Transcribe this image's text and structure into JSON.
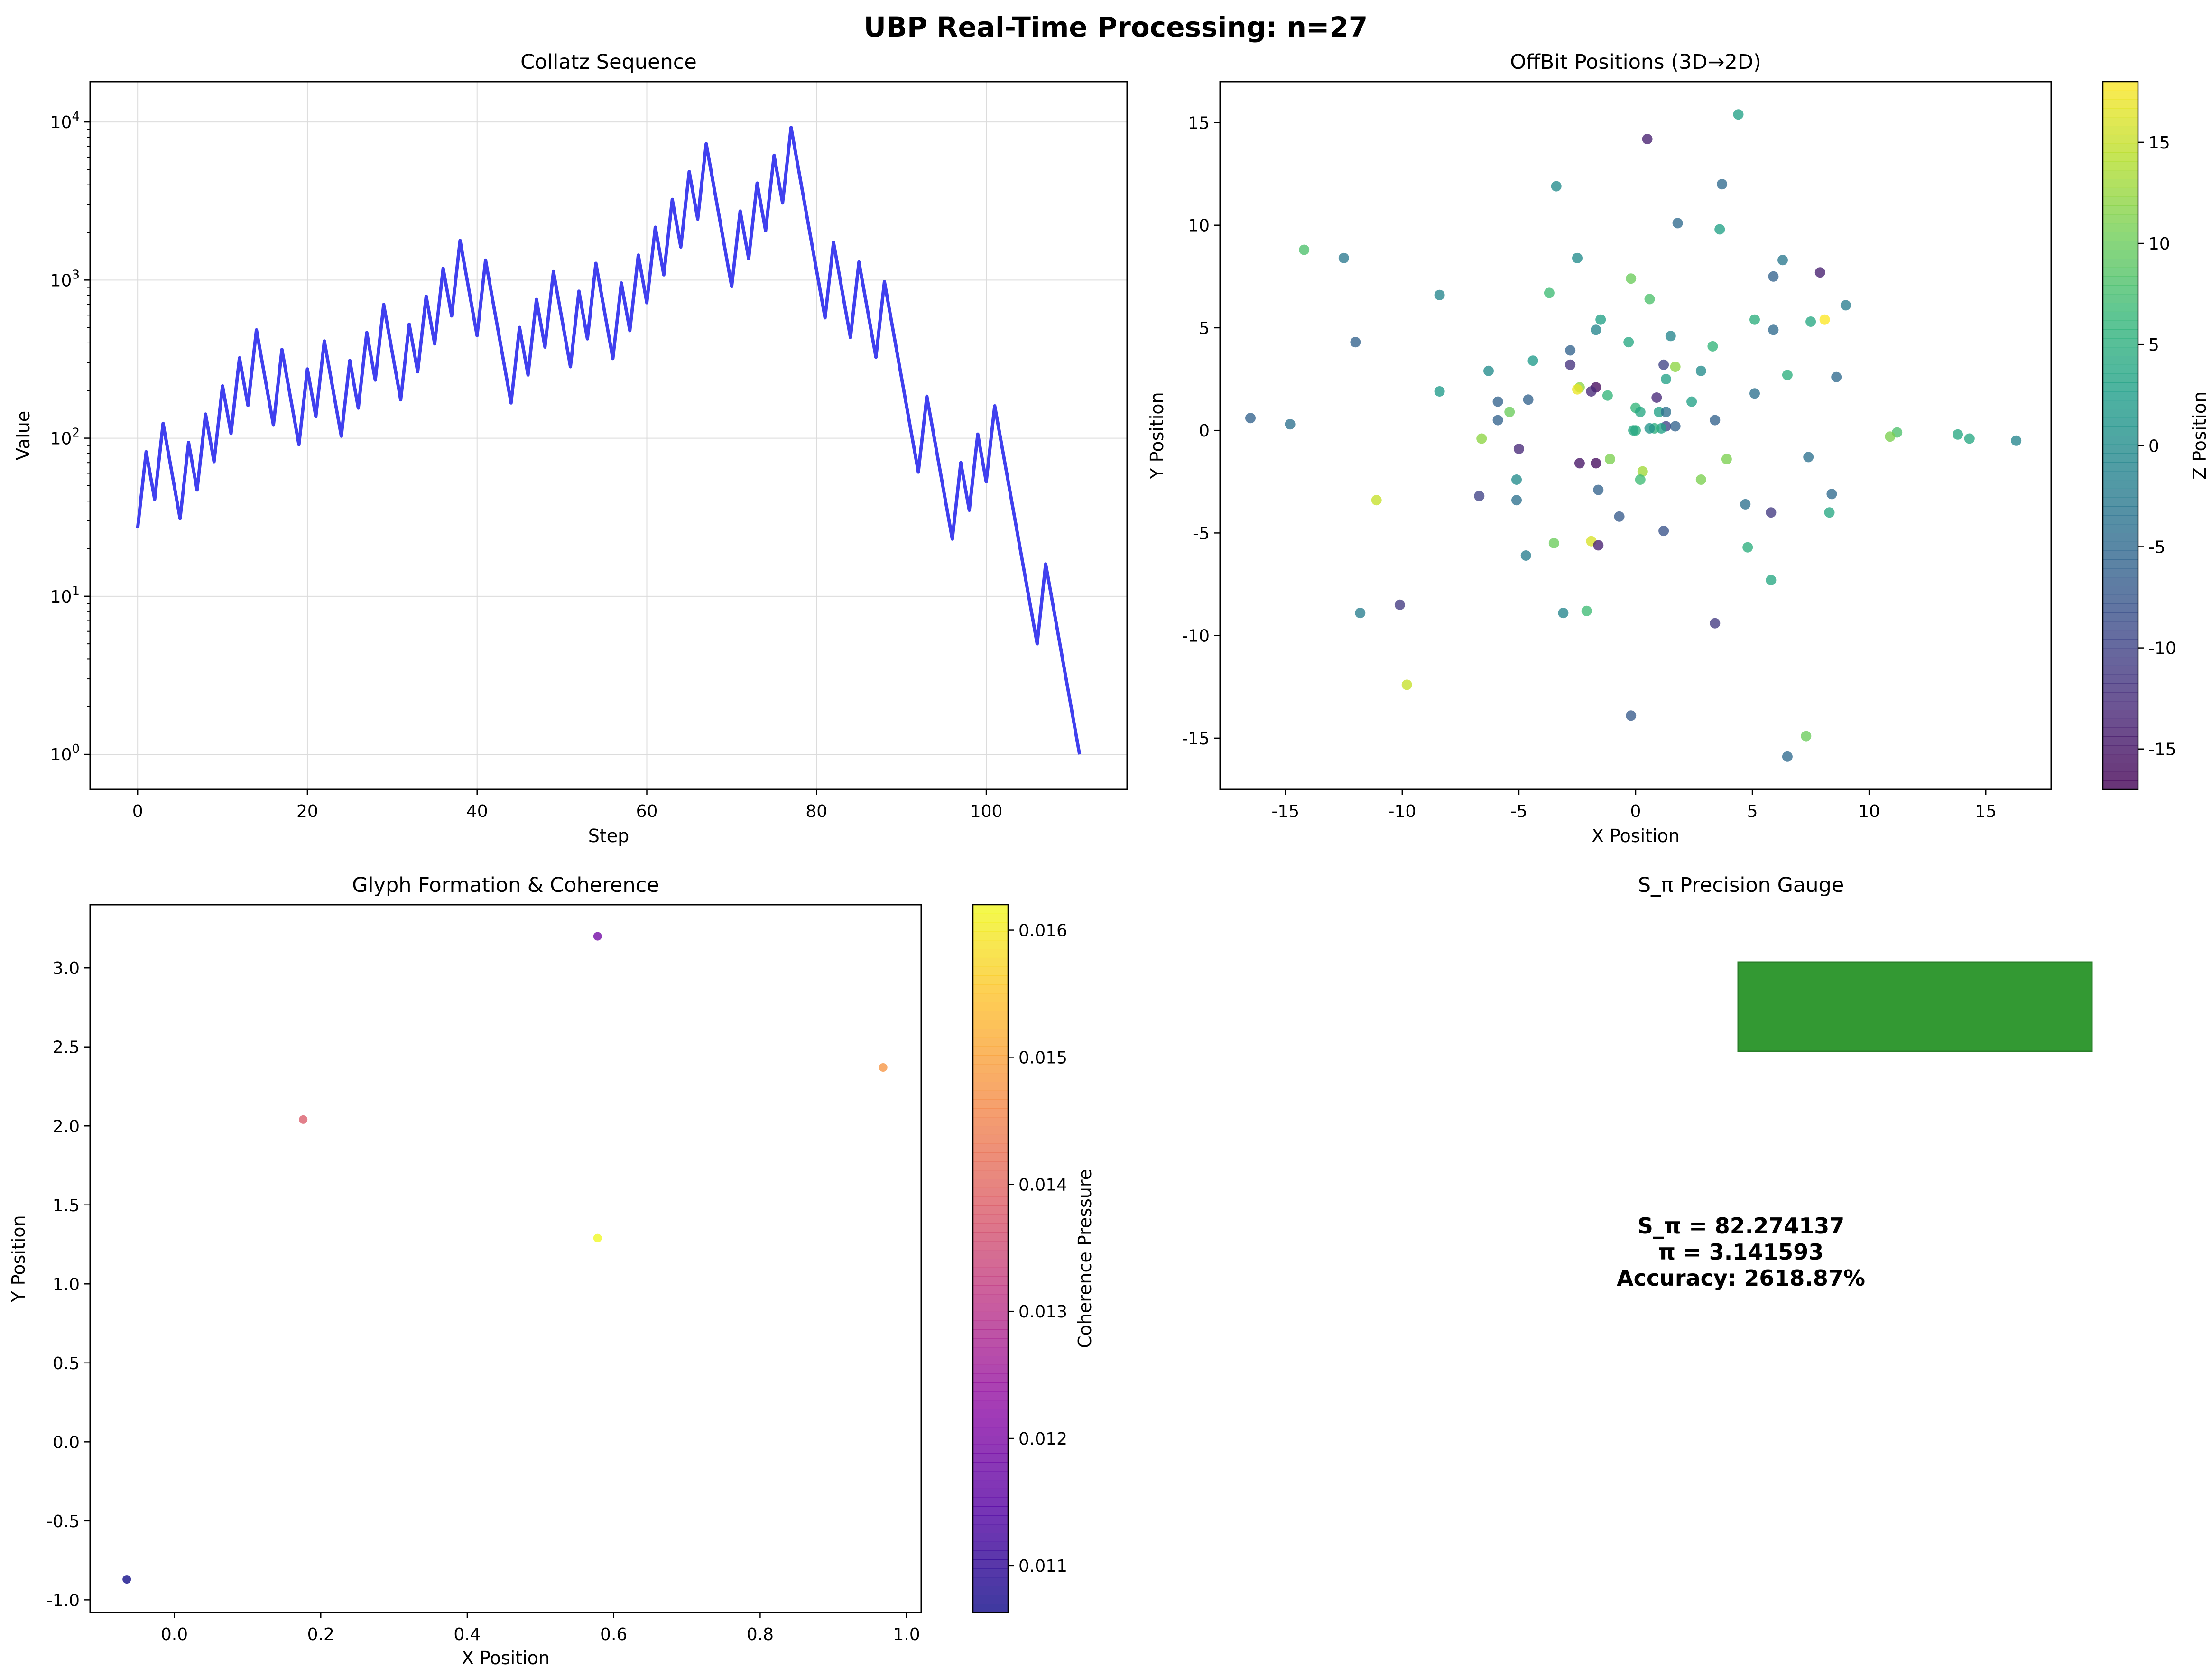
{
  "figure": {
    "title": "UBP Real-Time Processing: n=27"
  },
  "colors": {
    "line": "#4040ee",
    "grid": "#dcdcdc",
    "gauge_bar": "#339933"
  },
  "chart_data": [
    {
      "type": "line",
      "title": "Collatz Sequence",
      "xlabel": "Step",
      "ylabel": "Value",
      "yscale": "log",
      "ylim": [
        0.6,
        18000
      ],
      "xlim": [
        -5.6,
        116.6
      ],
      "xticks": [
        "0",
        "20",
        "40",
        "60",
        "80",
        "100"
      ],
      "yticks": [
        "10^0",
        "10^1",
        "10^2",
        "10^3",
        "10^4"
      ],
      "grid": true,
      "series": [
        {
          "values": [
            27,
            82,
            41,
            124,
            62,
            31,
            94,
            47,
            142,
            71,
            214,
            107,
            322,
            161,
            484,
            242,
            121,
            364,
            182,
            91,
            274,
            137,
            412,
            206,
            103,
            310,
            155,
            466,
            233,
            700,
            350,
            175,
            526,
            263,
            790,
            395,
            1186,
            593,
            1780,
            890,
            445,
            1336,
            668,
            334,
            167,
            502,
            251,
            754,
            377,
            1132,
            566,
            283,
            850,
            425,
            1276,
            638,
            319,
            958,
            479,
            1438,
            719,
            2158,
            1079,
            3238,
            1619,
            4858,
            2429,
            7288,
            3644,
            1822,
            911,
            2734,
            1367,
            4102,
            2051,
            6154,
            3077,
            9232,
            4616,
            2308,
            1154,
            577,
            1732,
            866,
            433,
            1300,
            650,
            325,
            976,
            488,
            244,
            122,
            61,
            184,
            92,
            46,
            23,
            70,
            35,
            106,
            53,
            160,
            80,
            40,
            20,
            10,
            5,
            16,
            8,
            4,
            2,
            1
          ]
        }
      ]
    },
    {
      "type": "scatter",
      "title": "OffBit Positions (3D→2D)",
      "xlabel": "X Position",
      "ylabel": "Y Position",
      "colorbar_label": "Z Position",
      "colormap": "viridis",
      "xlim": [
        -17.8,
        17.8
      ],
      "ylim": [
        -17.5,
        17.0
      ],
      "clim": [
        -17,
        18
      ],
      "xticks": [
        "-15",
        "-10",
        "-5",
        "0",
        "5",
        "10",
        "15"
      ],
      "yticks": [
        "-15",
        "-10",
        "-5",
        "0",
        "5",
        "10",
        "15"
      ],
      "cticks": [
        "-15",
        "-10",
        "-5",
        "0",
        "5",
        "10",
        "15"
      ],
      "points": [
        [
          0.5,
          14.2,
          -14
        ],
        [
          4.4,
          15.4,
          3
        ],
        [
          -3.4,
          11.9,
          0
        ],
        [
          3.7,
          12.0,
          -5
        ],
        [
          1.8,
          10.1,
          -5
        ],
        [
          3.6,
          9.8,
          3
        ],
        [
          -14.2,
          8.8,
          8
        ],
        [
          -12.5,
          8.4,
          -3
        ],
        [
          -2.5,
          8.4,
          0
        ],
        [
          6.3,
          8.3,
          -3
        ],
        [
          7.9,
          7.7,
          -14
        ],
        [
          5.9,
          7.5,
          -6
        ],
        [
          -0.2,
          7.4,
          10
        ],
        [
          -3.7,
          6.7,
          7
        ],
        [
          -8.4,
          6.6,
          -1
        ],
        [
          0.6,
          6.4,
          8
        ],
        [
          9.0,
          6.1,
          -2
        ],
        [
          8.1,
          5.4,
          18
        ],
        [
          -1.5,
          5.4,
          3
        ],
        [
          5.1,
          5.4,
          5
        ],
        [
          7.5,
          5.3,
          4
        ],
        [
          -1.7,
          4.9,
          -1
        ],
        [
          5.9,
          4.9,
          -5
        ],
        [
          1.5,
          4.6,
          -1
        ],
        [
          -12.0,
          4.3,
          -6
        ],
        [
          -0.3,
          4.3,
          4
        ],
        [
          3.3,
          4.1,
          6
        ],
        [
          -2.8,
          3.9,
          -6
        ],
        [
          -4.4,
          3.4,
          2
        ],
        [
          -2.8,
          3.2,
          -12
        ],
        [
          1.2,
          3.2,
          -10
        ],
        [
          1.7,
          3.1,
          12
        ],
        [
          -6.3,
          2.9,
          0
        ],
        [
          2.8,
          2.9,
          0
        ],
        [
          6.5,
          2.7,
          5
        ],
        [
          8.6,
          2.6,
          -5
        ],
        [
          1.3,
          2.5,
          3
        ],
        [
          -2.4,
          2.1,
          12
        ],
        [
          -1.7,
          2.1,
          -16
        ],
        [
          -2.5,
          2.0,
          17
        ],
        [
          -1.9,
          1.9,
          -13
        ],
        [
          -1.2,
          1.7,
          6
        ],
        [
          0.9,
          1.6,
          -13
        ],
        [
          5.1,
          1.8,
          -4
        ],
        [
          -8.4,
          1.9,
          2
        ],
        [
          -4.6,
          1.5,
          -6
        ],
        [
          -5.9,
          1.4,
          -6
        ],
        [
          2.4,
          1.4,
          3
        ],
        [
          0.0,
          1.1,
          6
        ],
        [
          0.2,
          0.9,
          4
        ],
        [
          1.0,
          0.9,
          3
        ],
        [
          1.3,
          0.9,
          -4
        ],
        [
          -5.4,
          0.9,
          10
        ],
        [
          -16.5,
          0.6,
          -6
        ],
        [
          -5.9,
          0.5,
          -6
        ],
        [
          3.4,
          0.5,
          -6
        ],
        [
          -14.8,
          0.3,
          -4
        ],
        [
          1.3,
          0.2,
          -10
        ],
        [
          1.7,
          0.2,
          -6
        ],
        [
          1.1,
          0.1,
          3
        ],
        [
          0.8,
          0.1,
          5
        ],
        [
          0.6,
          0.1,
          1
        ],
        [
          0.0,
          0.0,
          5
        ],
        [
          -0.1,
          0.0,
          4
        ],
        [
          11.2,
          -0.1,
          8
        ],
        [
          10.9,
          -0.3,
          11
        ],
        [
          13.8,
          -0.2,
          4
        ],
        [
          14.3,
          -0.4,
          4
        ],
        [
          16.3,
          -0.5,
          -1
        ],
        [
          -6.6,
          -0.4,
          12
        ],
        [
          -5.0,
          -0.9,
          -13
        ],
        [
          7.4,
          -1.3,
          -4
        ],
        [
          -1.1,
          -1.4,
          11
        ],
        [
          3.9,
          -1.4,
          11
        ],
        [
          -1.7,
          -1.6,
          -16
        ],
        [
          -2.4,
          -1.6,
          -15
        ],
        [
          0.3,
          -2.0,
          13
        ],
        [
          0.2,
          -2.4,
          7
        ],
        [
          2.8,
          -2.4,
          11
        ],
        [
          -5.1,
          -2.4,
          0
        ],
        [
          -1.6,
          -2.9,
          -6
        ],
        [
          8.4,
          -3.1,
          -5
        ],
        [
          -6.7,
          -3.2,
          -10
        ],
        [
          -5.1,
          -3.4,
          -4
        ],
        [
          -11.1,
          -3.4,
          15
        ],
        [
          4.7,
          -3.6,
          -4
        ],
        [
          5.8,
          -4.0,
          -11
        ],
        [
          8.3,
          -4.0,
          4
        ],
        [
          -0.7,
          -4.2,
          -7
        ],
        [
          1.2,
          -4.9,
          -8
        ],
        [
          -1.9,
          -5.4,
          16
        ],
        [
          -3.5,
          -5.5,
          10
        ],
        [
          -1.6,
          -5.6,
          -14
        ],
        [
          4.8,
          -5.7,
          5
        ],
        [
          -4.7,
          -6.1,
          -2
        ],
        [
          5.8,
          -7.3,
          4
        ],
        [
          -3.1,
          -8.9,
          -1
        ],
        [
          -2.1,
          -8.8,
          7
        ],
        [
          -11.8,
          -8.9,
          -2
        ],
        [
          -10.1,
          -8.5,
          -11
        ],
        [
          3.4,
          -9.4,
          -11
        ],
        [
          -9.8,
          -12.4,
          15
        ],
        [
          -0.2,
          -13.9,
          -7
        ],
        [
          7.3,
          -14.9,
          10
        ],
        [
          6.5,
          -15.9,
          -5
        ]
      ]
    },
    {
      "type": "scatter",
      "title": "Glyph Formation & Coherence",
      "xlabel": "X Position",
      "ylabel": "Y Position",
      "colorbar_label": "Coherence Pressure",
      "colormap": "plasma",
      "xlim": [
        -0.115,
        1.02
      ],
      "ylim": [
        -1.08,
        3.4
      ],
      "clim": [
        0.01063,
        0.0162
      ],
      "xticks": [
        "0.0",
        "0.2",
        "0.4",
        "0.6",
        "0.8",
        "1.0"
      ],
      "yticks": [
        "-1.0",
        "-0.5",
        "0.0",
        "0.5",
        "1.0",
        "1.5",
        "2.0",
        "2.5",
        "3.0"
      ],
      "cticks": [
        "0.011",
        "0.012",
        "0.013",
        "0.014",
        "0.015",
        "0.016"
      ],
      "points": [
        [
          -0.065,
          -0.87,
          0.01063
        ],
        [
          0.176,
          2.04,
          0.0138
        ],
        [
          0.578,
          3.2,
          0.01185
        ],
        [
          0.578,
          1.29,
          0.0162
        ],
        [
          0.968,
          2.37,
          0.0148
        ]
      ]
    }
  ],
  "gauge": {
    "title": "S_π Precision Gauge",
    "line1": "S_π = 82.274137",
    "line2": "π = 3.141593",
    "line3": "Accuracy: 2618.87%"
  }
}
